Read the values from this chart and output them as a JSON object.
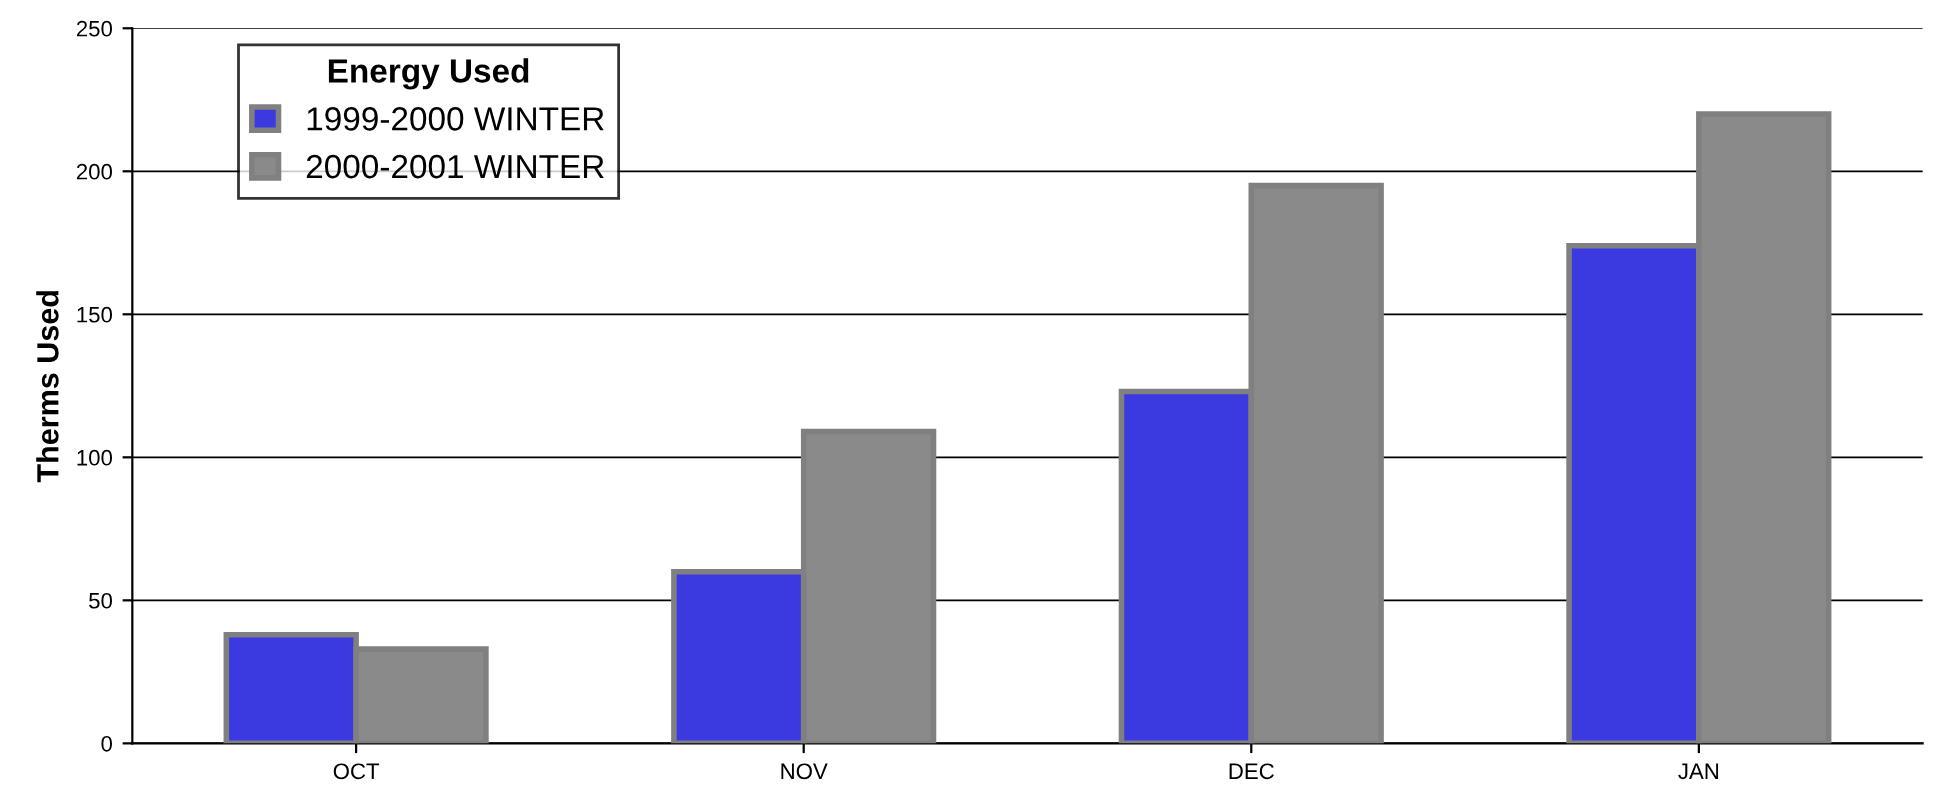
{
  "chart_data": {
    "type": "bar",
    "ylabel": "Therms Used",
    "legend_title": "Energy Used",
    "categories": [
      "OCT",
      "NOV",
      "DEC",
      "JAN"
    ],
    "series": [
      {
        "name": "1999-2000 WINTER",
        "color": "#3a3ae0",
        "values": [
          38,
          60,
          123,
          174
        ]
      },
      {
        "name": "2000-2001 WINTER",
        "color": "#8a8a8a",
        "values": [
          33,
          109,
          195,
          220
        ]
      }
    ],
    "ylim": [
      0,
      250
    ],
    "yticks": [
      0,
      50,
      100,
      150,
      200,
      250
    ],
    "grid": "y",
    "legend": "top left"
  }
}
